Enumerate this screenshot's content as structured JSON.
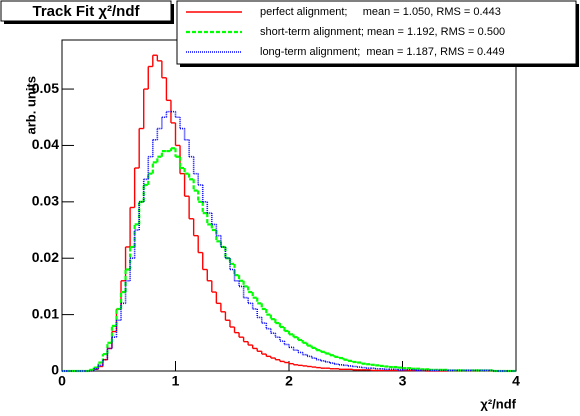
{
  "chart_data": {
    "type": "histogram",
    "title": "Track Fit χ²/ndf",
    "x_label": "χ²/ndf",
    "y_label": "arb. units",
    "xlim": [
      0,
      4
    ],
    "ylim": [
      0,
      0.0587
    ],
    "xticks": [
      0,
      1,
      2,
      3,
      4
    ],
    "yticks": [
      0,
      0.01,
      0.02,
      0.03,
      0.04,
      0.05
    ],
    "bins": [
      0,
      0.04,
      0.08,
      0.12,
      0.16,
      0.2,
      0.24,
      0.28,
      0.32,
      0.36,
      0.4,
      0.44,
      0.48,
      0.52,
      0.56,
      0.6,
      0.64,
      0.68,
      0.72,
      0.76,
      0.8,
      0.84,
      0.88,
      0.92,
      0.96,
      1,
      1.04,
      1.08,
      1.12,
      1.16,
      1.2,
      1.24,
      1.28,
      1.32,
      1.36,
      1.4,
      1.44,
      1.48,
      1.52,
      1.56,
      1.6,
      1.64,
      1.68,
      1.72,
      1.76,
      1.8,
      1.84,
      1.88,
      1.92,
      1.96,
      2,
      2.04,
      2.08,
      2.12,
      2.16,
      2.2,
      2.24,
      2.28,
      2.32,
      2.36,
      2.4,
      2.44,
      2.48,
      2.52,
      2.56,
      2.6,
      2.64,
      2.68,
      2.72,
      2.76,
      2.8,
      2.84,
      2.88,
      2.92,
      2.96,
      3,
      3.04,
      3.08,
      3.12,
      3.16,
      3.2,
      3.24,
      3.28,
      3.32,
      3.36,
      3.4,
      3.44,
      3.48,
      3.52,
      3.56,
      3.6,
      3.64,
      3.68,
      3.72,
      3.76,
      3.8,
      3.84,
      3.88,
      3.92,
      3.96,
      4
    ],
    "series": [
      {
        "name": "perfect alignment;     mean = 1.050, RMS = 0.443",
        "color": "#ff0000",
        "style": "solid",
        "values": [
          0,
          0,
          0,
          0,
          0,
          0,
          0.0001,
          0.0003,
          0.0008,
          0.002,
          0.004,
          0.007,
          0.011,
          0.016,
          0.022,
          0.029,
          0.036,
          0.043,
          0.05,
          0.054,
          0.056,
          0.055,
          0.052,
          0.048,
          0.044,
          0.04,
          0.035,
          0.031,
          0.027,
          0.024,
          0.021,
          0.018,
          0.016,
          0.014,
          0.012,
          0.0105,
          0.009,
          0.0078,
          0.0068,
          0.006,
          0.0052,
          0.0046,
          0.004,
          0.0035,
          0.003,
          0.0026,
          0.0023,
          0.002,
          0.0017,
          0.0015,
          0.0013,
          0.0011,
          0.001,
          0.0009,
          0.0008,
          0.0007,
          0.0006,
          0.0005,
          0.0005,
          0.0004,
          0.0004,
          0.0003,
          0.0003,
          0.0003,
          0.0002,
          0.0002,
          0.0002,
          0.0002,
          0.0001,
          0.0001,
          0.0001,
          0.0001,
          0.0001,
          0.0001,
          0.0001,
          0.0001,
          0.0001,
          0.0001,
          0.0001,
          0.0001,
          0,
          0,
          0,
          0,
          0,
          0,
          0,
          0,
          0,
          0,
          0,
          0,
          0,
          0,
          0,
          0,
          0,
          0,
          0,
          0
        ]
      },
      {
        "name": "short-term alignment; mean = 1.192, RMS = 0.500",
        "color": "#00ff00",
        "style": "dashed",
        "values": [
          0,
          0,
          0,
          0,
          0,
          0,
          0.0002,
          0.0006,
          0.0015,
          0.003,
          0.005,
          0.008,
          0.011,
          0.014,
          0.018,
          0.022,
          0.026,
          0.03,
          0.033,
          0.035,
          0.037,
          0.038,
          0.039,
          0.039,
          0.0395,
          0.038,
          0.036,
          0.035,
          0.034,
          0.032,
          0.03,
          0.028,
          0.026,
          0.025,
          0.023,
          0.022,
          0.02,
          0.019,
          0.017,
          0.016,
          0.015,
          0.014,
          0.013,
          0.012,
          0.011,
          0.01,
          0.0092,
          0.0085,
          0.0078,
          0.0071,
          0.0065,
          0.006,
          0.0055,
          0.005,
          0.0045,
          0.0041,
          0.0037,
          0.0034,
          0.0031,
          0.0028,
          0.0025,
          0.0023,
          0.002,
          0.0018,
          0.0016,
          0.0015,
          0.0013,
          0.0012,
          0.0011,
          0.001,
          0.0009,
          0.0008,
          0.0007,
          0.0007,
          0.0006,
          0.0005,
          0.0005,
          0.0004,
          0.0004,
          0.0003,
          0.0003,
          0.0002,
          0.0002,
          0.0002,
          0.0002,
          0.0001,
          0.0001,
          0.0001,
          0.0001,
          0.0001,
          0.0001,
          0.0001,
          0.0001,
          0.0001,
          0.0001,
          0,
          0,
          0,
          0,
          0
        ]
      },
      {
        "name": "long-term alignment;  mean = 1.187, RMS = 0.449",
        "color": "#0000ff",
        "style": "dotted",
        "values": [
          0,
          0,
          0,
          0,
          0,
          0,
          0,
          0.0004,
          0.001,
          0.002,
          0.004,
          0.006,
          0.009,
          0.012,
          0.016,
          0.02,
          0.025,
          0.03,
          0.034,
          0.038,
          0.041,
          0.043,
          0.045,
          0.046,
          0.046,
          0.045,
          0.043,
          0.041,
          0.038,
          0.035,
          0.033,
          0.03,
          0.028,
          0.026,
          0.024,
          0.022,
          0.02,
          0.018,
          0.016,
          0.015,
          0.013,
          0.012,
          0.011,
          0.0095,
          0.0085,
          0.0075,
          0.0067,
          0.006,
          0.0053,
          0.0047,
          0.0042,
          0.0037,
          0.0033,
          0.0029,
          0.0026,
          0.0023,
          0.002,
          0.0018,
          0.0016,
          0.0014,
          0.0012,
          0.0011,
          0.001,
          0.0009,
          0.0008,
          0.0007,
          0.0006,
          0.0005,
          0.0005,
          0.0004,
          0.0004,
          0.0003,
          0.0003,
          0.0003,
          0.0002,
          0.0002,
          0.0002,
          0.0002,
          0.0001,
          0.0001,
          0.0001,
          0.0001,
          0.0001,
          0.0001,
          0.0001,
          0.0001,
          0.0001,
          0.0001,
          0.0001,
          0.0001,
          0.0001,
          0.0001,
          0.0001,
          0.0001,
          0.0001,
          0,
          0,
          0,
          0,
          0
        ]
      }
    ]
  }
}
